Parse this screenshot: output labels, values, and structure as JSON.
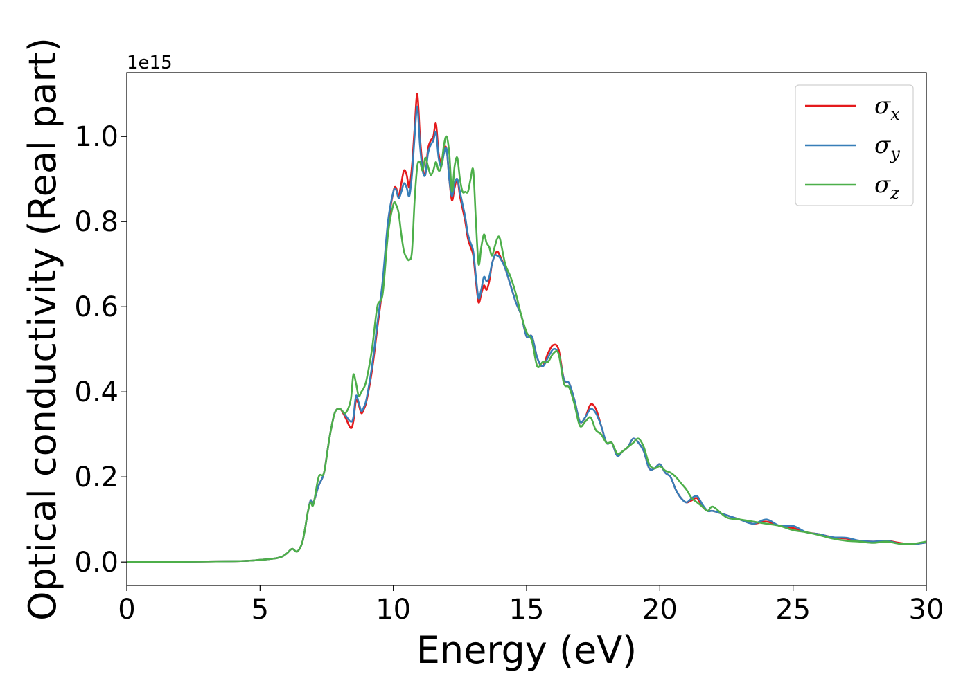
{
  "chart_data": {
    "type": "line",
    "xlabel": "Energy (eV)",
    "ylabel": "Optical conductivity (Real part)",
    "y_offset_label": "1e15",
    "xlim": [
      0,
      30
    ],
    "ylim": [
      -0.055,
      1.15
    ],
    "x_ticks": [
      0,
      5,
      10,
      15,
      20,
      25,
      30
    ],
    "y_ticks": [
      0.0,
      0.2,
      0.4,
      0.6,
      0.8,
      1.0
    ],
    "x_tick_labels": [
      "0",
      "5",
      "10",
      "15",
      "20",
      "25",
      "30"
    ],
    "y_tick_labels": [
      "0.0",
      "0.2",
      "0.4",
      "0.6",
      "0.8",
      "1.0"
    ],
    "grid": false,
    "legend_position": "top-right",
    "series": [
      {
        "name": "σx",
        "symbol": "σ",
        "subscript": "x",
        "color": "#e41a1c",
        "x": [
          0,
          4,
          5,
          5.5,
          5.8,
          6.0,
          6.2,
          6.4,
          6.6,
          6.8,
          6.9,
          7.0,
          7.2,
          7.4,
          7.6,
          7.8,
          8.0,
          8.2,
          8.4,
          8.5,
          8.6,
          8.7,
          8.8,
          8.9,
          9.0,
          9.2,
          9.4,
          9.6,
          9.8,
          10.0,
          10.1,
          10.2,
          10.3,
          10.4,
          10.5,
          10.6,
          10.7,
          10.8,
          10.9,
          11.0,
          11.1,
          11.2,
          11.3,
          11.4,
          11.5,
          11.6,
          11.7,
          11.8,
          11.9,
          12.0,
          12.1,
          12.2,
          12.3,
          12.4,
          12.5,
          12.6,
          12.7,
          12.8,
          12.9,
          13.0,
          13.1,
          13.2,
          13.3,
          13.4,
          13.5,
          13.6,
          13.7,
          13.8,
          13.9,
          14.0,
          14.2,
          14.4,
          14.6,
          14.8,
          15.0,
          15.2,
          15.4,
          15.6,
          15.8,
          16.0,
          16.2,
          16.4,
          16.6,
          16.8,
          17.0,
          17.2,
          17.4,
          17.6,
          17.8,
          18.0,
          18.2,
          18.4,
          18.6,
          18.8,
          19.0,
          19.2,
          19.4,
          19.6,
          19.8,
          20.0,
          20.2,
          20.4,
          20.6,
          20.8,
          21.0,
          21.2,
          21.4,
          21.6,
          21.8,
          22.0,
          22.5,
          23.0,
          23.5,
          24.0,
          24.5,
          25.0,
          25.5,
          26.0,
          26.5,
          27.0,
          27.5,
          28.0,
          28.5,
          29.0,
          29.5,
          30.0
        ],
        "y": [
          0,
          0.002,
          0.005,
          0.008,
          0.012,
          0.02,
          0.031,
          0.025,
          0.05,
          0.12,
          0.145,
          0.14,
          0.18,
          0.21,
          0.29,
          0.35,
          0.36,
          0.34,
          0.315,
          0.33,
          0.38,
          0.37,
          0.35,
          0.36,
          0.38,
          0.45,
          0.55,
          0.65,
          0.79,
          0.87,
          0.88,
          0.86,
          0.89,
          0.92,
          0.91,
          0.88,
          0.93,
          1.02,
          1.1,
          1.0,
          0.93,
          0.91,
          0.97,
          0.99,
          1.0,
          1.03,
          0.96,
          0.94,
          0.97,
          0.97,
          0.9,
          0.85,
          0.88,
          0.9,
          0.86,
          0.83,
          0.8,
          0.76,
          0.74,
          0.72,
          0.66,
          0.61,
          0.63,
          0.65,
          0.64,
          0.66,
          0.7,
          0.72,
          0.73,
          0.72,
          0.69,
          0.65,
          0.61,
          0.58,
          0.53,
          0.53,
          0.48,
          0.46,
          0.49,
          0.51,
          0.5,
          0.43,
          0.42,
          0.38,
          0.33,
          0.34,
          0.37,
          0.36,
          0.32,
          0.28,
          0.28,
          0.25,
          0.26,
          0.27,
          0.29,
          0.28,
          0.26,
          0.22,
          0.22,
          0.23,
          0.21,
          0.2,
          0.17,
          0.15,
          0.14,
          0.145,
          0.15,
          0.13,
          0.12,
          0.12,
          0.11,
          0.1,
          0.09,
          0.095,
          0.085,
          0.08,
          0.07,
          0.065,
          0.058,
          0.055,
          0.05,
          0.048,
          0.05,
          0.045,
          0.042,
          0.046
        ]
      },
      {
        "name": "σy",
        "symbol": "σ",
        "subscript": "y",
        "color": "#377eb8",
        "x": [
          0,
          4,
          5,
          5.5,
          5.8,
          6.0,
          6.2,
          6.4,
          6.6,
          6.8,
          6.9,
          7.0,
          7.2,
          7.4,
          7.6,
          7.8,
          8.0,
          8.2,
          8.4,
          8.5,
          8.6,
          8.7,
          8.8,
          8.9,
          9.0,
          9.2,
          9.4,
          9.6,
          9.8,
          10.0,
          10.1,
          10.2,
          10.3,
          10.4,
          10.5,
          10.6,
          10.7,
          10.8,
          10.9,
          11.0,
          11.1,
          11.2,
          11.3,
          11.4,
          11.5,
          11.6,
          11.7,
          11.8,
          11.9,
          12.0,
          12.1,
          12.2,
          12.3,
          12.4,
          12.5,
          12.6,
          12.7,
          12.8,
          12.9,
          13.0,
          13.1,
          13.2,
          13.3,
          13.4,
          13.5,
          13.6,
          13.7,
          13.8,
          13.9,
          14.0,
          14.2,
          14.4,
          14.6,
          14.8,
          15.0,
          15.2,
          15.4,
          15.6,
          15.8,
          16.0,
          16.2,
          16.4,
          16.6,
          16.8,
          17.0,
          17.2,
          17.4,
          17.6,
          17.8,
          18.0,
          18.2,
          18.4,
          18.6,
          18.8,
          19.0,
          19.2,
          19.4,
          19.6,
          19.8,
          20.0,
          20.2,
          20.4,
          20.6,
          20.8,
          21.0,
          21.2,
          21.4,
          21.6,
          21.8,
          22.0,
          22.5,
          23.0,
          23.5,
          24.0,
          24.5,
          25.0,
          25.5,
          26.0,
          26.5,
          27.0,
          27.5,
          28.0,
          28.5,
          29.0,
          29.5,
          30.0
        ],
        "y": [
          0,
          0.002,
          0.005,
          0.008,
          0.012,
          0.02,
          0.031,
          0.025,
          0.05,
          0.12,
          0.145,
          0.14,
          0.18,
          0.21,
          0.29,
          0.35,
          0.36,
          0.345,
          0.33,
          0.34,
          0.39,
          0.375,
          0.355,
          0.365,
          0.385,
          0.46,
          0.56,
          0.66,
          0.8,
          0.87,
          0.875,
          0.855,
          0.87,
          0.89,
          0.88,
          0.86,
          0.91,
          1.0,
          1.07,
          0.98,
          0.92,
          0.91,
          0.96,
          0.98,
          0.99,
          1.01,
          0.95,
          0.93,
          0.96,
          0.97,
          0.9,
          0.86,
          0.89,
          0.9,
          0.87,
          0.84,
          0.81,
          0.77,
          0.75,
          0.73,
          0.67,
          0.62,
          0.64,
          0.67,
          0.66,
          0.67,
          0.7,
          0.72,
          0.72,
          0.715,
          0.69,
          0.65,
          0.61,
          0.58,
          0.53,
          0.53,
          0.48,
          0.46,
          0.48,
          0.5,
          0.49,
          0.43,
          0.42,
          0.38,
          0.33,
          0.34,
          0.36,
          0.35,
          0.32,
          0.28,
          0.28,
          0.25,
          0.26,
          0.27,
          0.29,
          0.28,
          0.26,
          0.22,
          0.22,
          0.23,
          0.21,
          0.2,
          0.17,
          0.15,
          0.14,
          0.15,
          0.155,
          0.135,
          0.12,
          0.12,
          0.11,
          0.1,
          0.09,
          0.1,
          0.085,
          0.085,
          0.07,
          0.065,
          0.058,
          0.057,
          0.05,
          0.048,
          0.05,
          0.043,
          0.042,
          0.046
        ]
      },
      {
        "name": "σz",
        "symbol": "σ",
        "subscript": "z",
        "color": "#4daf4a",
        "x": [
          0,
          4,
          5,
          5.5,
          5.8,
          6.0,
          6.2,
          6.4,
          6.6,
          6.8,
          6.9,
          7.0,
          7.2,
          7.4,
          7.6,
          7.8,
          8.0,
          8.2,
          8.4,
          8.5,
          8.6,
          8.7,
          8.8,
          8.9,
          9.0,
          9.2,
          9.4,
          9.6,
          9.8,
          10.0,
          10.1,
          10.2,
          10.3,
          10.4,
          10.5,
          10.6,
          10.7,
          10.8,
          10.9,
          11.0,
          11.1,
          11.2,
          11.3,
          11.4,
          11.5,
          11.6,
          11.7,
          11.8,
          11.9,
          12.0,
          12.1,
          12.2,
          12.3,
          12.4,
          12.5,
          12.6,
          12.7,
          12.8,
          12.9,
          13.0,
          13.1,
          13.2,
          13.3,
          13.4,
          13.5,
          13.6,
          13.7,
          13.8,
          13.9,
          14.0,
          14.2,
          14.4,
          14.6,
          14.8,
          15.0,
          15.2,
          15.4,
          15.6,
          15.8,
          16.0,
          16.2,
          16.4,
          16.6,
          16.8,
          17.0,
          17.2,
          17.4,
          17.6,
          17.8,
          18.0,
          18.2,
          18.4,
          18.6,
          18.8,
          19.0,
          19.2,
          19.4,
          19.6,
          19.8,
          20.0,
          20.2,
          20.4,
          20.6,
          20.8,
          21.0,
          21.2,
          21.4,
          21.6,
          21.8,
          22.0,
          22.5,
          23.0,
          23.5,
          24.0,
          24.5,
          25.0,
          25.5,
          26.0,
          26.5,
          27.0,
          27.5,
          28.0,
          28.5,
          29.0,
          29.5,
          30.0
        ],
        "y": [
          0,
          0.002,
          0.005,
          0.008,
          0.012,
          0.02,
          0.031,
          0.025,
          0.05,
          0.12,
          0.14,
          0.135,
          0.2,
          0.21,
          0.29,
          0.35,
          0.36,
          0.35,
          0.38,
          0.44,
          0.42,
          0.39,
          0.4,
          0.41,
          0.43,
          0.5,
          0.6,
          0.63,
          0.77,
          0.84,
          0.84,
          0.82,
          0.77,
          0.73,
          0.715,
          0.71,
          0.73,
          0.85,
          0.93,
          0.94,
          0.92,
          0.95,
          0.93,
          0.91,
          0.92,
          0.94,
          0.92,
          0.93,
          0.98,
          1.0,
          0.96,
          0.87,
          0.93,
          0.95,
          0.9,
          0.87,
          0.87,
          0.87,
          0.9,
          0.92,
          0.8,
          0.7,
          0.74,
          0.77,
          0.75,
          0.74,
          0.72,
          0.74,
          0.76,
          0.76,
          0.7,
          0.67,
          0.63,
          0.58,
          0.54,
          0.52,
          0.46,
          0.47,
          0.47,
          0.49,
          0.49,
          0.42,
          0.41,
          0.37,
          0.32,
          0.33,
          0.34,
          0.31,
          0.3,
          0.28,
          0.28,
          0.255,
          0.26,
          0.27,
          0.28,
          0.29,
          0.27,
          0.23,
          0.22,
          0.225,
          0.215,
          0.21,
          0.2,
          0.185,
          0.17,
          0.15,
          0.14,
          0.13,
          0.12,
          0.13,
          0.105,
          0.1,
          0.095,
          0.09,
          0.085,
          0.075,
          0.07,
          0.063,
          0.055,
          0.05,
          0.048,
          0.045,
          0.048,
          0.043,
          0.043,
          0.048
        ]
      }
    ]
  }
}
